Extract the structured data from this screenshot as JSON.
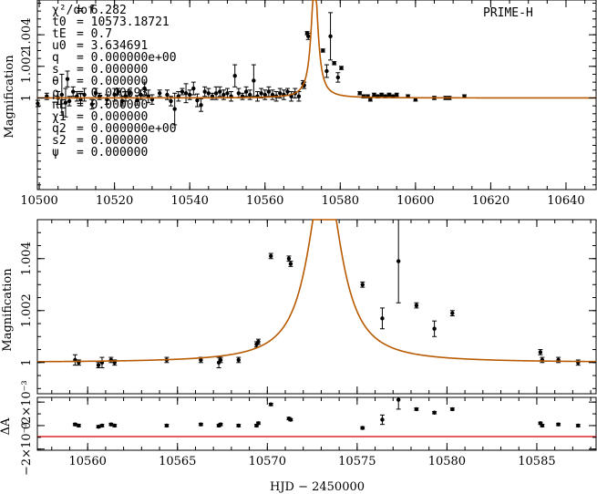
{
  "chart_data": [
    {
      "panel": "overview",
      "type": "scatter",
      "title": "PRIME-H",
      "ylabel": "Magnification",
      "xlim": [
        10499.5,
        10648
      ],
      "ylim": [
        0.9942,
        1.0062
      ],
      "xticks": [
        10500,
        10520,
        10540,
        10560,
        10580,
        10600,
        10620,
        10640
      ],
      "yticks": [
        1,
        1.002,
        1.004
      ],
      "parameters": [
        {
          "label": "χ²/dof",
          "value": "= 6.282"
        },
        {
          "label": "t0",
          "value": "= 10573.18721"
        },
        {
          "label": "tE",
          "value": "= 0.7"
        },
        {
          "label": "u0",
          "value": "= 3.634691"
        },
        {
          "label": "q",
          "value": "= 0.000000e+00"
        },
        {
          "label": "s",
          "value": "= 0.000000"
        },
        {
          "label": "θ",
          "value": "= 0.000000"
        },
        {
          "label": "ρ",
          "value": "= 0.040693"
        },
        {
          "label": "πE",
          "value": "= 0.000000"
        },
        {
          "label": "χ1",
          "value": "= 0.000000"
        },
        {
          "label": "q2",
          "value": "= 0.000000e+00"
        },
        {
          "label": "s2",
          "value": "= 0.000000"
        },
        {
          "label": "ψ",
          "value": "= 0.000000"
        }
      ],
      "series": [
        {
          "name": "PRIME-H",
          "x": [
            10499.6,
            10502,
            10505,
            10506,
            10507,
            10507.5,
            10508,
            10509,
            10510,
            10511,
            10512,
            10514,
            10515,
            10516,
            10518,
            10520,
            10521,
            10522,
            10523,
            10524,
            10526,
            10527,
            10528,
            10529,
            10530,
            10532,
            10534,
            10535,
            10536,
            10537,
            10538,
            10539,
            10540,
            10541,
            10542,
            10543,
            10544,
            10545,
            10546,
            10547,
            10548,
            10549,
            10550,
            10551,
            10552,
            10553,
            10554,
            10555,
            10556,
            10557,
            10558,
            10559,
            10560,
            10561,
            10562,
            10563,
            10564,
            10565,
            10566,
            10567,
            10568,
            10569,
            10570.1,
            10570.4,
            10571.2,
            10571.5,
            10575.4,
            10576.4,
            10577.4,
            10578.4,
            10579.4,
            10580.3,
            10585.2,
            10586.2,
            10587.3,
            10588,
            10589,
            10590,
            10591,
            10592,
            10593,
            10594,
            10595,
            10598,
            10600,
            10605,
            10608,
            10609,
            10613
          ],
          "y": [
            0.99965,
            1.0001,
            1.0,
            1.0002,
            0.9997,
            1.0012,
            0.9998,
            1.0004,
            1.0001,
            0.9999,
            1.0002,
            0.9996,
            1.0003,
            1.0001,
            0.9999,
            1.0002,
            1.0004,
            0.9998,
            1.0001,
            1.0003,
            0.99985,
            1.0002,
            1.0006,
            1.0001,
            0.9999,
            1.0003,
            1.0002,
            0.9998,
            0.9993,
            1.0001,
            1.0004,
            1.0003,
            1.0002,
            1.0006,
            0.99985,
            0.99955,
            1.0004,
            1.0003,
            1.0001,
            1.0003,
            1.0004,
            1.0002,
            1.0003,
            1.0001,
            1.0014,
            1.0003,
            1.0001,
            1.0004,
            1.0002,
            1.0011,
            1.0001,
            1.0003,
            1.0002,
            1.0004,
            1.0002,
            1.0001,
            1.0003,
            1.0002,
            1.0004,
            1.0001,
            1.0003,
            1.0001,
            1.0009,
            1.0008,
            1.0041,
            1.0039,
            1.003,
            1.0017,
            1.0039,
            1.0022,
            1.0013,
            1.0019,
            1.0003,
            1.0001,
            1.0001,
            0.9999,
            1.0002,
            1.0001,
            1.0002,
            1.0001,
            1.0002,
            1.0001,
            1.0002,
            1.0001,
            0.9999,
            1.0,
            1.0,
            1.0,
            1.0001
          ],
          "yerr": [
            0.0002,
            0.0002,
            0.0004,
            0.0013,
            0.0009,
            0.0005,
            0.0003,
            0.0003,
            0.0003,
            0.0004,
            0.0004,
            0.0003,
            0.0003,
            0.0002,
            0.0003,
            0.0004,
            0.0002,
            0.0003,
            0.0003,
            0.0002,
            0.0003,
            0.0003,
            0.0004,
            0.0004,
            0.0003,
            0.0002,
            0.0003,
            0.0003,
            0.001,
            0.0003,
            0.0002,
            0.0006,
            0.0003,
            0.0004,
            0.0004,
            0.0004,
            0.0003,
            0.0003,
            0.0002,
            0.0004,
            0.0003,
            0.0003,
            0.0003,
            0.0003,
            0.0007,
            0.0003,
            0.0002,
            0.0003,
            0.0003,
            0.001,
            0.0003,
            0.0003,
            0.0003,
            0.0003,
            0.0003,
            0.0003,
            0.0003,
            0.0003,
            0.0002,
            0.0003,
            0.0003,
            0.0003,
            0.0002,
            0.0002,
            0.0001,
            0.0002,
            0.0001,
            0.0004,
            0.0015,
            0.0001,
            0.0003,
            0.0001,
            0.0001,
            0.0001,
            0.0001,
            0.0001,
            0.0001,
            0.0001,
            0.0001,
            0.0001,
            0.0001,
            0.0001,
            0.0001,
            0.0001,
            0.0001,
            0.0001,
            0.0001,
            0.0001,
            0.0001
          ]
        }
      ],
      "model": {
        "t0": 10573.18721,
        "peak": 1.0075
      }
    },
    {
      "panel": "zoom",
      "type": "scatter",
      "ylabel": "Magnification",
      "xlim": [
        10557.2,
        10588.3
      ],
      "ylim": [
        0.9988,
        1.0055
      ],
      "xticks": [
        10560,
        10565,
        10570,
        10575,
        10580,
        10585
      ],
      "yticks": [
        1,
        1.002,
        1.004
      ],
      "series": [
        {
          "name": "PRIME-H",
          "x": [
            10559.3,
            10559.5,
            10560.6,
            10560.8,
            10561.3,
            10561.5,
            10564.4,
            10566.3,
            10567.3,
            10567.4,
            10568.4,
            10569.4,
            10569.5,
            10570.2,
            10571.2,
            10571.3,
            10575.3,
            10576.4,
            10577.3,
            10578.3,
            10579.3,
            10580.3,
            10585.2,
            10585.3,
            10586.2,
            10587.3
          ],
          "y": [
            1.0001,
            1.0,
            0.9999,
            1.0,
            1.0001,
            1.0,
            1.0001,
            1.0001,
            1.0,
            1.0001,
            1.0001,
            1.0007,
            1.0008,
            1.0041,
            1.004,
            1.0038,
            1.003,
            1.0017,
            1.0039,
            1.0022,
            1.0013,
            1.0019,
            1.0004,
            1.0001,
            1.0001,
            1.0
          ],
          "yerr": [
            0.0002,
            0.0001,
            0.0001,
            0.0002,
            0.0001,
            0.0001,
            0.0001,
            0.0001,
            0.0002,
            0.0001,
            0.0001,
            0.0001,
            0.0001,
            0.0001,
            0.0001,
            0.0001,
            0.0001,
            0.0004,
            0.0016,
            0.0001,
            0.0003,
            0.0001,
            0.0001,
            0.0001,
            0.0001,
            0.0001
          ]
        }
      ]
    },
    {
      "panel": "residuals",
      "type": "scatter",
      "ylabel": "ΔA",
      "xlabel": "HJD − 2450000",
      "xlim": [
        10557.2,
        10588.3
      ],
      "ylim": [
        -0.0021,
        0.0024
      ],
      "ytick_labels": [
        "−2×10⁻³",
        "0",
        "2×10⁻³"
      ],
      "yticks": [
        -0.002,
        0,
        0.002
      ],
      "xticks": [
        10560,
        10565,
        10570,
        10575,
        10580,
        10585
      ],
      "series": [
        {
          "name": "residuals",
          "x": [
            10559.3,
            10559.5,
            10560.6,
            10560.8,
            10561.3,
            10561.5,
            10564.4,
            10566.3,
            10567.3,
            10567.4,
            10568.4,
            10569.4,
            10569.5,
            10570.2,
            10571.2,
            10571.3,
            10575.3,
            10576.4,
            10577.3,
            10578.3,
            10579.3,
            10580.3,
            10585.2,
            10585.3,
            10586.2,
            10587.3
          ],
          "y": [
            0.0001,
            0.0,
            -0.0001,
            0.0,
            0.0001,
            0.0,
            0.0,
            0.0001,
            0.0,
            0.0001,
            0.0,
            0.0,
            0.0002,
            0.0018,
            0.0006,
            0.0005,
            -0.0002,
            0.0005,
            0.0022,
            0.0014,
            0.0011,
            0.0014,
            0.0002,
            0.0,
            0.0001,
            0.0
          ],
          "yerr": [
            0.0001,
            0.0001,
            0.0001,
            0.0001,
            0.0001,
            0.0001,
            0.0001,
            0.0001,
            0.0001,
            0.0001,
            0.0001,
            0.0001,
            0.0001,
            0.0001,
            0.0001,
            0.0001,
            0.0001,
            0.0004,
            0.0008,
            0.0001,
            0.0001,
            0.0001,
            0.0001,
            0.0001,
            0.0001,
            0.0001
          ]
        }
      ]
    }
  ]
}
